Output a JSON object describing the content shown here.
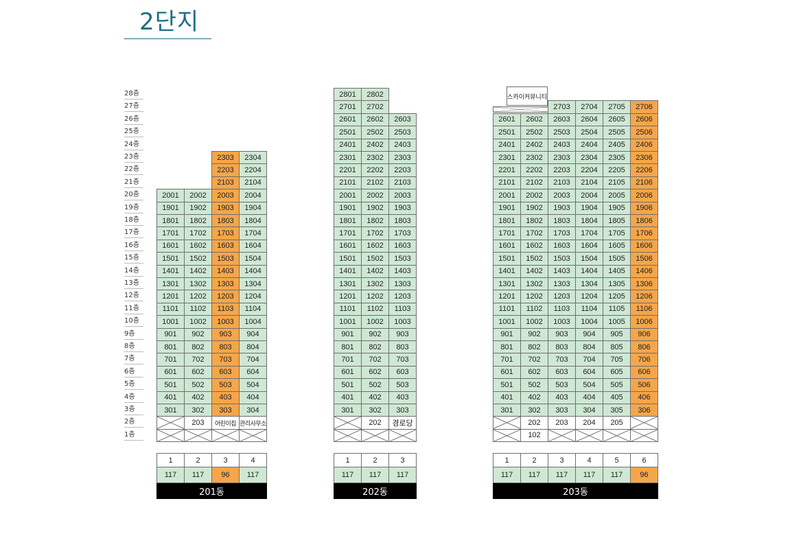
{
  "title": "2단지",
  "floor_labels": [
    "28층",
    "27층",
    "26층",
    "25층",
    "24층",
    "23층",
    "22층",
    "21층",
    "20층",
    "19층",
    "18층",
    "17층",
    "16층",
    "15층",
    "14층",
    "13층",
    "12층",
    "11층",
    "10층",
    "9층",
    "8층",
    "7층",
    "6층",
    "5층",
    "4층",
    "3층",
    "2층",
    "1층"
  ],
  "colors": {
    "green": "#cfe8d4",
    "orange": "#f5a64a",
    "title": "#1e6e86"
  },
  "buildings": [
    {
      "name": "201동",
      "lines": [
        {
          "line": "1",
          "area": "117",
          "color": "green",
          "top_floor": 20,
          "special": {
            "2": "x",
            "1": "x"
          }
        },
        {
          "line": "2",
          "area": "117",
          "color": "green",
          "top_floor": 20,
          "special": {
            "2": "203",
            "1": "x"
          }
        },
        {
          "line": "3",
          "area": "96",
          "color": "orange",
          "top_floor": 23,
          "special": {
            "2": "어린이집",
            "1": "x"
          }
        },
        {
          "line": "4",
          "area": "117",
          "color": "green",
          "top_floor": 23,
          "special": {
            "2": "관리사무소",
            "1": "x"
          }
        }
      ]
    },
    {
      "name": "202동",
      "lines": [
        {
          "line": "1",
          "area": "117",
          "color": "green",
          "top_floor": 28,
          "special": {
            "2": "x",
            "1": "x"
          }
        },
        {
          "line": "2",
          "area": "117",
          "color": "green",
          "top_floor": 28,
          "special": {
            "2": "202",
            "1": "x"
          }
        },
        {
          "line": "3",
          "area": "117",
          "color": "green",
          "top_floor": 26,
          "special": {
            "2": "경로당",
            "1": "x"
          }
        }
      ]
    },
    {
      "name": "203동",
      "sky_community": "스카이커뮤니티",
      "lines": [
        {
          "line": "1",
          "area": "117",
          "color": "green",
          "top_floor": 26,
          "special": {
            "2": "x",
            "1": "x"
          }
        },
        {
          "line": "2",
          "area": "117",
          "color": "green",
          "top_floor": 26,
          "special": {
            "2": "202",
            "1": "102"
          }
        },
        {
          "line": "3",
          "area": "117",
          "color": "green",
          "top_floor": 27,
          "special": {
            "2": "203",
            "1": "x"
          }
        },
        {
          "line": "4",
          "area": "117",
          "color": "green",
          "top_floor": 27,
          "special": {
            "2": "204",
            "1": "x"
          }
        },
        {
          "line": "5",
          "area": "117",
          "color": "green",
          "top_floor": 27,
          "special": {
            "2": "205",
            "1": "x"
          }
        },
        {
          "line": "6",
          "area": "96",
          "color": "orange",
          "top_floor": 27,
          "special": {
            "2": "x",
            "1": "x"
          }
        }
      ]
    }
  ]
}
